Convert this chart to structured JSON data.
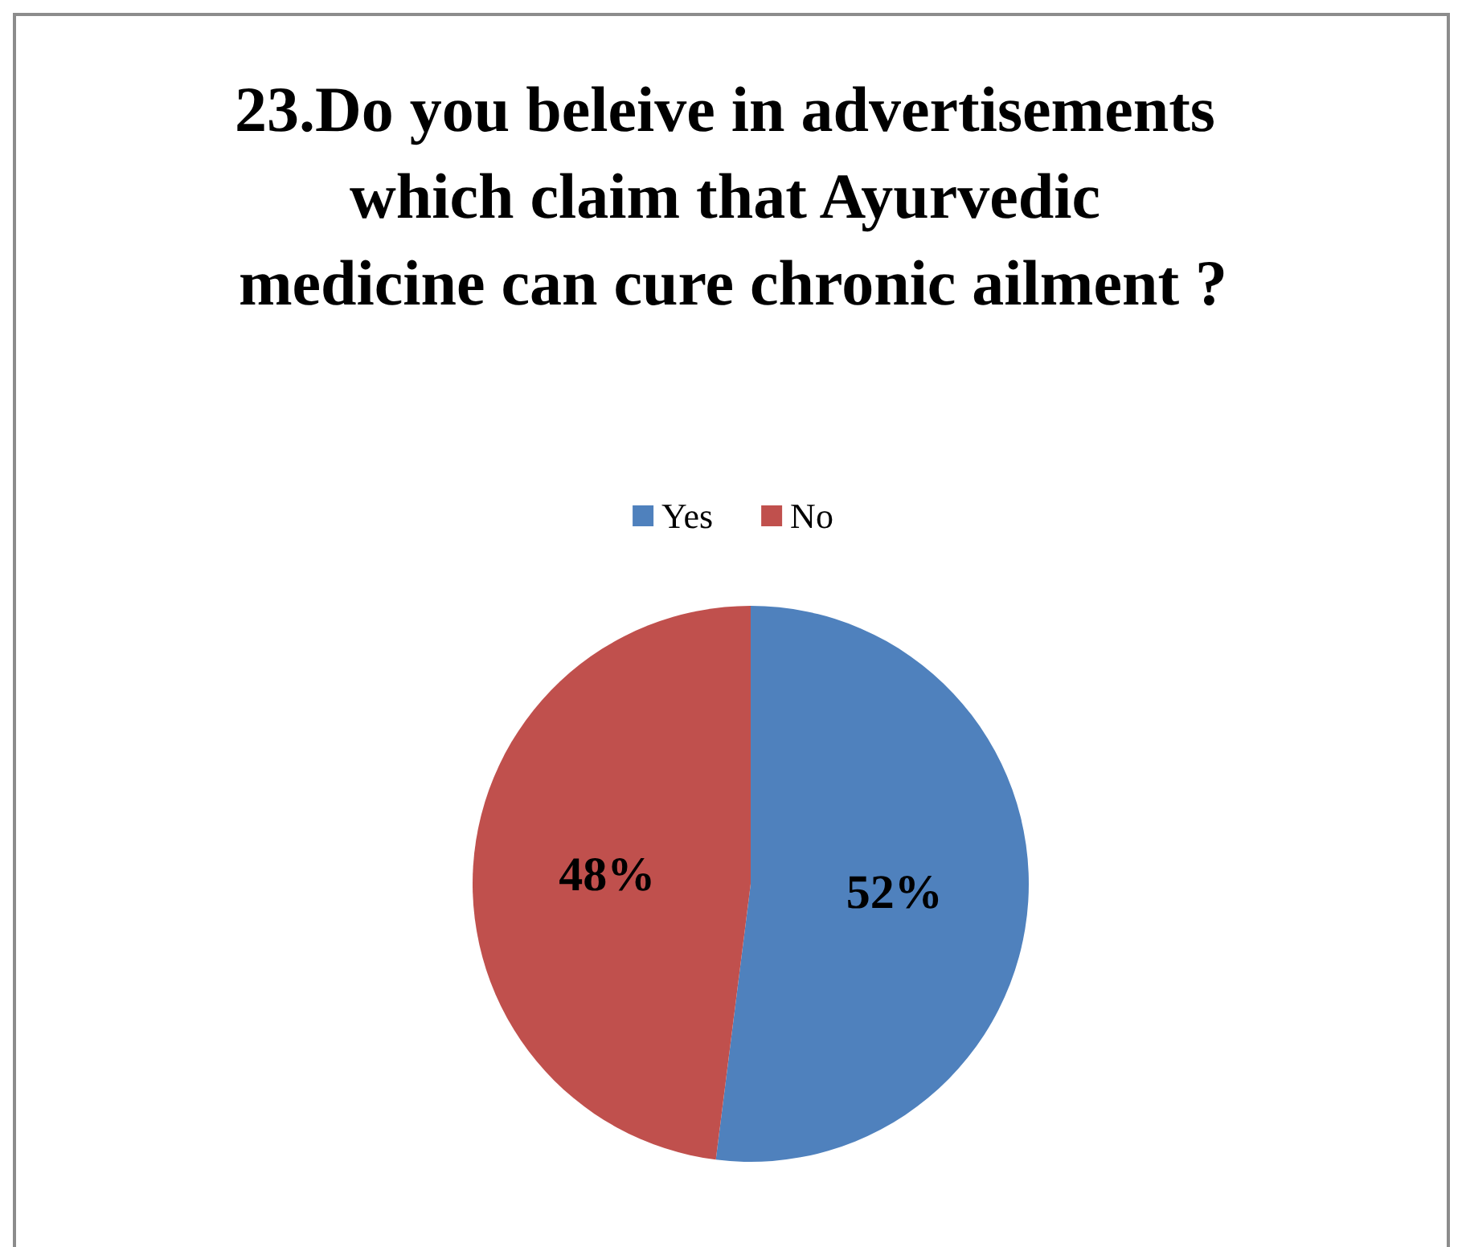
{
  "chart_data": {
    "type": "pie",
    "title": "23.Do you beleive in advertisements which claim that Ayurvedic medicine can cure chronic ailment ?",
    "categories": [
      "Yes",
      "No"
    ],
    "values": [
      52,
      48
    ],
    "colors": [
      "#4f81bd",
      "#c0504d"
    ],
    "value_labels": [
      "52%",
      "48%"
    ],
    "legend": "top"
  }
}
